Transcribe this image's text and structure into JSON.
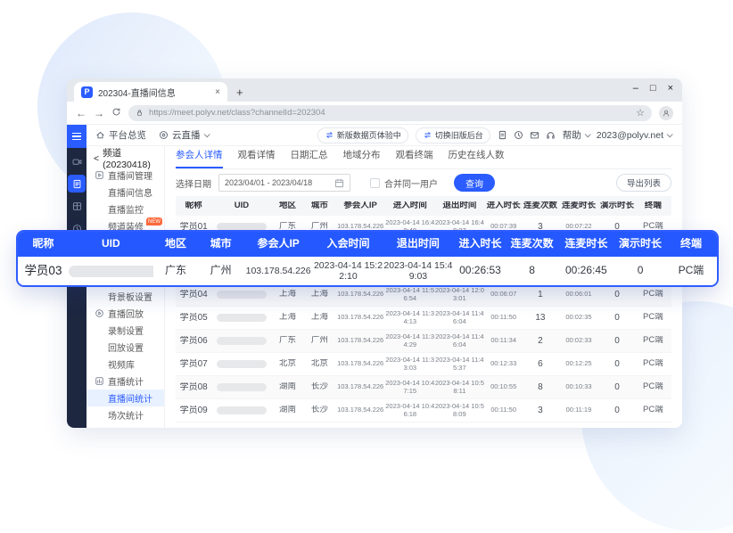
{
  "browser": {
    "tab_title": "202304-直播间信息",
    "tab_close": "×",
    "new_tab": "+",
    "favicon_letter": "P",
    "back": "←",
    "forward": "→",
    "url": "https://meet.polyv.net/class?channelId=202304",
    "star": "☆",
    "window": {
      "minimize": "–",
      "maximize": "□",
      "close": "×"
    }
  },
  "app_header": {
    "nav_overview": "平台总览",
    "nav_live": "云直播",
    "pill_new": "新版数据页体验中",
    "pill_switch": "切换旧版后台",
    "header_icons": [
      "file-icon",
      "time-icon",
      "mail-icon",
      "headset-icon"
    ],
    "help": "帮助",
    "account": "2023@polyv.net"
  },
  "rail": {
    "icons": [
      "camera-icon",
      "document-icon",
      "layout-icon",
      "history-icon"
    ],
    "active": "document-icon"
  },
  "sidebar": {
    "back_arrow": "<",
    "channel": "频道(20230418)",
    "items": [
      {
        "type": "group",
        "label": "直播间管理",
        "icon": "live-manage-icon"
      },
      {
        "type": "item",
        "label": "直播间信息"
      },
      {
        "type": "item",
        "label": "直播监控"
      },
      {
        "type": "item",
        "label": "频道装修",
        "badge": "NEW"
      },
      {
        "type": "gap"
      },
      {
        "type": "item",
        "label": "背景板设置"
      },
      {
        "type": "group",
        "label": "直播回放",
        "icon": "replay-icon"
      },
      {
        "type": "item",
        "label": "录制设置"
      },
      {
        "type": "item",
        "label": "回放设置"
      },
      {
        "type": "item",
        "label": "视频库"
      },
      {
        "type": "group",
        "label": "直播统计",
        "icon": "stats-icon"
      },
      {
        "type": "item",
        "label": "直播间统计",
        "active": true
      },
      {
        "type": "item",
        "label": "场次统计"
      }
    ]
  },
  "tabs": [
    {
      "label": "参会人详情",
      "active": true
    },
    {
      "label": "观看详情"
    },
    {
      "label": "日期汇总"
    },
    {
      "label": "地域分布"
    },
    {
      "label": "观看终端"
    },
    {
      "label": "历史在线人数"
    }
  ],
  "filter": {
    "date_label": "选择日期",
    "date_value": "2023/04/01 - 2023/04/18",
    "merge_label": "合并同一用户",
    "query_label": "查询",
    "export_label": "导出列表"
  },
  "table": {
    "columns": [
      "昵称",
      "UID",
      "地区",
      "城市",
      "参会人IP",
      "进入时间",
      "退出时间",
      "进入时长",
      "连麦次数",
      "连麦时长",
      "演示时长",
      "终端"
    ],
    "rows": [
      [
        "学员01",
        "",
        "广东",
        "广州",
        "103.178.54.226",
        "2023-04-14 16:40:48",
        "2023-04-14 16:48:27",
        "00:07:39",
        "3",
        "00:07:22",
        "0",
        "PC端"
      ],
      [
        "学员04",
        "",
        "上海",
        "上海",
        "103.178.54.226",
        "2023-04-14 11:56:54",
        "2023-04-14 12:03:01",
        "00:06:07",
        "1",
        "00:06:01",
        "0",
        "PC端"
      ],
      [
        "学员05",
        "",
        "上海",
        "上海",
        "103.178.54.226",
        "2023-04-14 11:34:13",
        "2023-04-14 11:46:04",
        "00:11:50",
        "13",
        "00:02:35",
        "0",
        "PC端"
      ],
      [
        "学员06",
        "",
        "广东",
        "广州",
        "103.178.54.226",
        "2023-04-14 11:34:29",
        "2023-04-14 11:46:04",
        "00:11:34",
        "2",
        "00:02:33",
        "0",
        "PC端"
      ],
      [
        "学员07",
        "",
        "北京",
        "北京",
        "103.178.54.226",
        "2023-04-14 11:33:03",
        "2023-04-14 11:45:37",
        "00:12:33",
        "6",
        "00:12:25",
        "0",
        "PC端"
      ],
      [
        "学员08",
        "",
        "湖南",
        "长沙",
        "103.178.54.226",
        "2023-04-14 10:47:15",
        "2023-04-14 10:58:11",
        "00:10:55",
        "8",
        "00:10:33",
        "0",
        "PC端"
      ],
      [
        "学员09",
        "",
        "湖南",
        "长沙",
        "103.178.54.226",
        "2023-04-14 10:46:18",
        "2023-04-14 10:58:09",
        "00:11:50",
        "3",
        "00:11:19",
        "0",
        "PC端"
      ]
    ]
  },
  "overlay": {
    "columns": [
      "昵称",
      "UID",
      "地区",
      "城市",
      "参会人IP",
      "入会时间",
      "退出时间",
      "进入时长",
      "连麦次数",
      "连麦时长",
      "演示时长",
      "终端"
    ],
    "row": [
      "学员03",
      "",
      "广东",
      "广州",
      "103.178.54.226",
      "2023-04-14 15:22:10",
      "2023-04-14 15:49:03",
      "00:26:53",
      "8",
      "00:26:45",
      "0",
      "PC端"
    ]
  },
  "colors": {
    "accent": "#2a5cff",
    "overlay_header": "#2559ff",
    "rail_background": "#1e2740",
    "new_badge": "#ff6a3b",
    "table_header_bg": "#f5f6f8"
  }
}
